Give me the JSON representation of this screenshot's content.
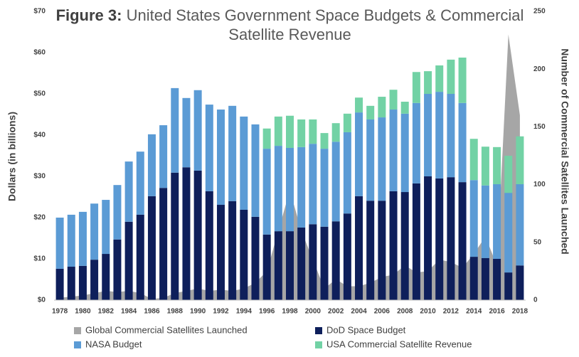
{
  "chart_data": {
    "type": "bar",
    "title_label": "Figure 3:",
    "title": "United States Government Space Budgets & Commercial Satellite Revenue",
    "y_label": "Dollars (in billions)",
    "y2_label": "Number of Commercial Satellites Launched",
    "categories": [
      "1978",
      null,
      "1980",
      null,
      "1982",
      null,
      "1984",
      null,
      "1986",
      null,
      "1988",
      null,
      "1990",
      null,
      "1992",
      null,
      "1994",
      null,
      "1996",
      null,
      "1998",
      null,
      "2000",
      null,
      "2002",
      null,
      "2004",
      null,
      "2006",
      null,
      "2008",
      null,
      "2010",
      null,
      "2012",
      null,
      "2014",
      null,
      "2016",
      null,
      "2018"
    ],
    "series": [
      {
        "name": "Global Commercial Satellites Launched",
        "type": "area",
        "axis": "y2",
        "color": "#a6a6a6",
        "values": [
          2,
          3,
          4,
          6,
          8,
          7,
          8,
          6,
          1,
          2,
          6,
          8,
          10,
          8,
          9,
          8,
          10,
          15,
          25,
          60,
          95,
          60,
          35,
          10,
          18,
          12,
          12,
          15,
          20,
          22,
          30,
          24,
          25,
          35,
          33,
          28,
          40,
          55,
          30,
          230,
          160
        ]
      },
      {
        "name": "DoD Space Budget",
        "color": "#0e1f5b",
        "values": [
          7.6,
          8.1,
          8.3,
          9.8,
          11.2,
          14.7,
          19.0,
          20.7,
          25.2,
          27.2,
          30.9,
          32.2,
          31.4,
          26.4,
          23.1,
          24.0,
          21.9,
          20.2,
          15.9,
          16.7,
          16.7,
          17.6,
          18.4,
          17.8,
          19.1,
          21.0,
          25.2,
          24.1,
          24.1,
          26.4,
          26.2,
          28.3,
          30.0,
          29.5,
          29.8,
          28.6,
          10.5,
          10.2,
          10.0,
          6.7,
          8.4
        ]
      },
      {
        "name": "NASA Budget",
        "color": "#5b9bd5",
        "values": [
          12.4,
          12.6,
          13.1,
          13.6,
          13.1,
          13.2,
          14.6,
          15.3,
          15.0,
          15.2,
          20.5,
          16.8,
          19.5,
          21.0,
          23.1,
          23.1,
          22.6,
          22.4,
          20.8,
          20.7,
          20.2,
          19.5,
          19.5,
          18.9,
          19.3,
          19.7,
          20.3,
          19.7,
          20.2,
          19.8,
          19.0,
          19.5,
          20.0,
          21.0,
          20.2,
          19.2,
          18.6,
          17.6,
          18.1,
          19.3,
          19.7
        ]
      },
      {
        "name": "USA Commercial Satellite Revenue",
        "color": "#72d2a5",
        "values": [
          null,
          null,
          null,
          null,
          null,
          null,
          null,
          null,
          null,
          null,
          null,
          null,
          null,
          null,
          null,
          null,
          null,
          null,
          4.9,
          7.1,
          7.8,
          6.7,
          5.9,
          3.8,
          4.5,
          4.5,
          3.6,
          3.3,
          5.0,
          4.8,
          2.9,
          7.5,
          5.5,
          6.4,
          8.3,
          11.0,
          10.0,
          9.4,
          9.0,
          9.0,
          11.6
        ]
      }
    ],
    "ylim": [
      0,
      70
    ],
    "yticks": [
      {
        "value": 0,
        "label": "$0"
      },
      {
        "value": 10,
        "label": "$10"
      },
      {
        "value": 20,
        "label": "$20"
      },
      {
        "value": 30,
        "label": "$30"
      },
      {
        "value": 40,
        "label": "$40"
      },
      {
        "value": 50,
        "label": "$50"
      },
      {
        "value": 60,
        "label": "$60"
      },
      {
        "value": 70,
        "label": "$70"
      }
    ],
    "y2lim": [
      0,
      250
    ],
    "y2ticks": [
      0,
      50,
      100,
      150,
      200,
      250
    ],
    "grid": false,
    "legend": "bottom"
  }
}
